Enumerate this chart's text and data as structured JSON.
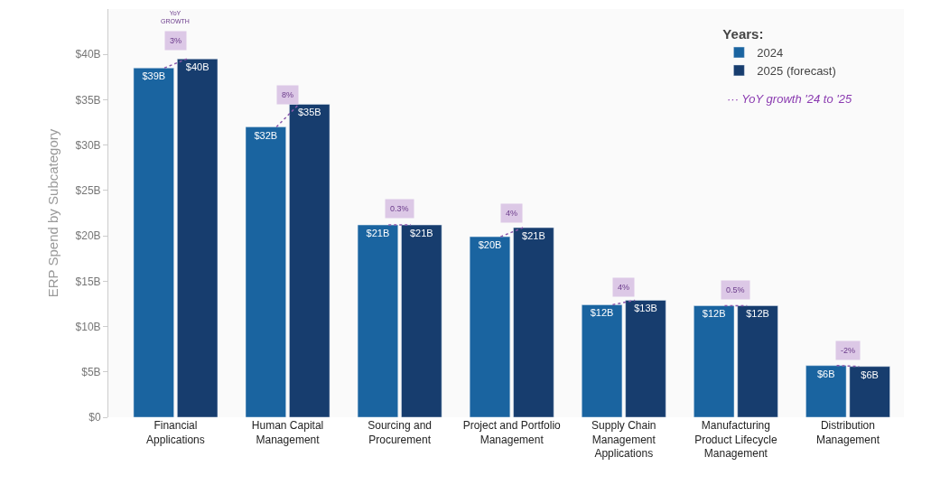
{
  "chart_data": {
    "type": "bar",
    "ylabel": "ERP Spend by Subcategory",
    "legend_title": "Years:",
    "legend": "top right",
    "categories": [
      "Financial\nApplications",
      "Human Capital\nManagement",
      "Sourcing and\nProcurement",
      "Project and Portfolio\nManagement",
      "Supply Chain\nManagement\nApplications",
      "Manufacturing\nProduct Lifecycle\nManagement",
      "Distribution\nManagement"
    ],
    "series": [
      {
        "name": "2024",
        "color": "#1a64a0",
        "values": [
          38.5,
          32.0,
          21.2,
          19.9,
          12.4,
          12.3,
          5.7
        ],
        "value_labels": [
          "$39B",
          "$32B",
          "$21B",
          "$20B",
          "$12B",
          "$12B",
          "$6B"
        ]
      },
      {
        "name": "2025 (forecast)",
        "color": "#173d6e",
        "values": [
          39.5,
          34.5,
          21.2,
          20.9,
          12.9,
          12.3,
          5.6
        ],
        "value_labels": [
          "$40B",
          "$35B",
          "$21B",
          "$21B",
          "$13B",
          "$12B",
          "$6B"
        ]
      }
    ],
    "ylim": [
      0,
      45
    ],
    "yticks": [
      {
        "value": 0,
        "label": "$0"
      },
      {
        "value": 5,
        "label": "$5B"
      },
      {
        "value": 10,
        "label": "$10B"
      },
      {
        "value": 15,
        "label": "$15B"
      },
      {
        "value": 20,
        "label": "$20B"
      },
      {
        "value": 25,
        "label": "$25B"
      },
      {
        "value": 30,
        "label": "$30B"
      },
      {
        "value": 35,
        "label": "$35B"
      },
      {
        "value": 40,
        "label": "$40B"
      }
    ],
    "annotations": [
      {
        "text": "3%",
        "x": "Financial\nApplications",
        "y": 41.5
      },
      {
        "text": "8%",
        "x": "Human Capital\nManagement",
        "y": 35.5
      },
      {
        "text": "0.3%",
        "x": "Sourcing and\nProcurement",
        "y": 23.0
      },
      {
        "text": "4%",
        "x": "Project and Portfolio\nManagement",
        "y": 22.5
      },
      {
        "text": "4%",
        "x": "Supply Chain\nManagement\nApplications",
        "y": 14.3
      },
      {
        "text": "0.5%",
        "x": "Manufacturing\nProduct Lifecycle\nManagement",
        "y": 14.0
      },
      {
        "text": "-2%",
        "x": "Distribution\nManagement",
        "y": 7.4
      },
      "YoY\nGROWTH",
      "··· YoY growth '24 to '25"
    ]
  }
}
